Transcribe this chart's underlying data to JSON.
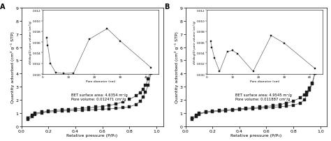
{
  "panel_A": {
    "label": "A",
    "bet_text": "BET surface area: 4.6354 m²/g\nPore volume: 0.012471 cm³/g",
    "main": {
      "adsorption_x": [
        0.05,
        0.08,
        0.1,
        0.15,
        0.2,
        0.25,
        0.3,
        0.35,
        0.4,
        0.45,
        0.5,
        0.55,
        0.6,
        0.65,
        0.7,
        0.75,
        0.8,
        0.85,
        0.88,
        0.9,
        0.92,
        0.94,
        0.96,
        0.98,
        0.99,
        1.0
      ],
      "adsorption_y": [
        0.5,
        0.72,
        0.9,
        1.02,
        1.08,
        1.12,
        1.16,
        1.18,
        1.2,
        1.22,
        1.25,
        1.27,
        1.3,
        1.32,
        1.36,
        1.4,
        1.48,
        1.65,
        1.9,
        2.2,
        2.6,
        3.1,
        4.0,
        5.4,
        7.0,
        8.2
      ],
      "desorption_x": [
        1.0,
        0.99,
        0.98,
        0.96,
        0.94,
        0.92,
        0.9,
        0.88,
        0.85,
        0.8,
        0.75,
        0.7,
        0.65,
        0.6,
        0.55,
        0.5,
        0.45,
        0.4,
        0.35,
        0.3,
        0.25,
        0.2,
        0.15,
        0.1,
        0.08,
        0.05
      ],
      "desorption_y": [
        8.2,
        7.0,
        5.5,
        4.3,
        3.6,
        3.1,
        2.8,
        2.55,
        2.3,
        2.05,
        1.85,
        1.68,
        1.58,
        1.5,
        1.45,
        1.4,
        1.36,
        1.32,
        1.28,
        1.24,
        1.2,
        1.15,
        1.08,
        0.98,
        0.82,
        0.65
      ],
      "xlim": [
        0.0,
        1.05
      ],
      "ylim": [
        0,
        9
      ],
      "xlabel": "Relative pressure (P/P₀)",
      "ylabel": "Quantity adsorbed (cm³ g⁻¹ STP)",
      "yticks": [
        0,
        1,
        2,
        3,
        4,
        5,
        6,
        7,
        8,
        9
      ],
      "xticks": [
        0.0,
        0.2,
        0.4,
        0.6,
        0.8,
        1.0
      ]
    },
    "inset": {
      "x": [
        1.5,
        2.0,
        3.0,
        5.0,
        8.0,
        12.0,
        18.0,
        25.0,
        30.0,
        42.0
      ],
      "y": [
        0.0068,
        0.0053,
        0.002,
        0.0003,
        0.0001,
        0.0002,
        0.0065,
        0.0085,
        0.0062,
        0.0012
      ],
      "xlim": [
        0,
        45
      ],
      "ylim": [
        0,
        0.012
      ],
      "xlabel": "Pore diameter (nm)",
      "ylabel": "dV/dlog(D) pore volume (cm³/g)",
      "yticks": [
        0.0,
        0.002,
        0.004,
        0.006,
        0.008,
        0.01,
        0.012
      ]
    }
  },
  "panel_B": {
    "label": "B",
    "bet_text": "BET surface area: 4.9545 m²/g\nPore volume: 0.011887 cm³/g",
    "main": {
      "adsorption_x": [
        0.05,
        0.08,
        0.1,
        0.15,
        0.2,
        0.25,
        0.3,
        0.35,
        0.4,
        0.45,
        0.5,
        0.55,
        0.6,
        0.65,
        0.7,
        0.75,
        0.8,
        0.85,
        0.88,
        0.9,
        0.92,
        0.94,
        0.96,
        0.98,
        0.99,
        1.0
      ],
      "adsorption_y": [
        0.5,
        0.75,
        0.92,
        1.05,
        1.1,
        1.14,
        1.18,
        1.22,
        1.26,
        1.3,
        1.34,
        1.37,
        1.4,
        1.44,
        1.48,
        1.53,
        1.6,
        1.75,
        2.0,
        2.35,
        2.75,
        3.2,
        4.1,
        5.5,
        7.1,
        7.65
      ],
      "desorption_x": [
        1.0,
        0.99,
        0.98,
        0.96,
        0.94,
        0.92,
        0.9,
        0.88,
        0.85,
        0.8,
        0.75,
        0.7,
        0.65,
        0.6,
        0.55,
        0.5,
        0.45,
        0.4,
        0.35,
        0.3,
        0.25,
        0.2,
        0.15,
        0.1,
        0.08,
        0.05
      ],
      "desorption_y": [
        7.65,
        6.5,
        5.1,
        4.0,
        3.3,
        2.9,
        2.6,
        2.4,
        2.15,
        1.92,
        1.75,
        1.64,
        1.56,
        1.5,
        1.45,
        1.4,
        1.36,
        1.32,
        1.28,
        1.24,
        1.2,
        1.15,
        1.08,
        0.98,
        0.82,
        0.62
      ],
      "xlim": [
        0.0,
        1.05
      ],
      "ylim": [
        0,
        9
      ],
      "xlabel": "Relative pressure (P/P₀)",
      "ylabel": "Quantity adsorbed (cm³ g⁻¹ STP)",
      "yticks": [
        0,
        1,
        2,
        3,
        4,
        5,
        6,
        7,
        8,
        9
      ],
      "xticks": [
        0.0,
        0.2,
        0.4,
        0.6,
        0.8,
        1.0
      ]
    },
    "inset": {
      "x": [
        1.5,
        2.0,
        3.0,
        5.0,
        8.0,
        10.0,
        12.0,
        18.0,
        25.0,
        30.0,
        42.0
      ],
      "y": [
        0.0062,
        0.005,
        0.003,
        0.0005,
        0.0042,
        0.0044,
        0.0038,
        0.0005,
        0.0072,
        0.0058,
        0.001
      ],
      "xlim": [
        0,
        45
      ],
      "ylim": [
        0,
        0.012
      ],
      "xlabel": "Pore diameter (nm)",
      "ylabel": "dV/dlog(D) pore volume (cm³/g)",
      "yticks": [
        0.0,
        0.002,
        0.004,
        0.006,
        0.008,
        0.01,
        0.012
      ]
    }
  },
  "marker": "s",
  "marker_size": 2.5,
  "line_color": "#666666",
  "marker_color": "#1a1a1a",
  "background_color": "#ffffff"
}
